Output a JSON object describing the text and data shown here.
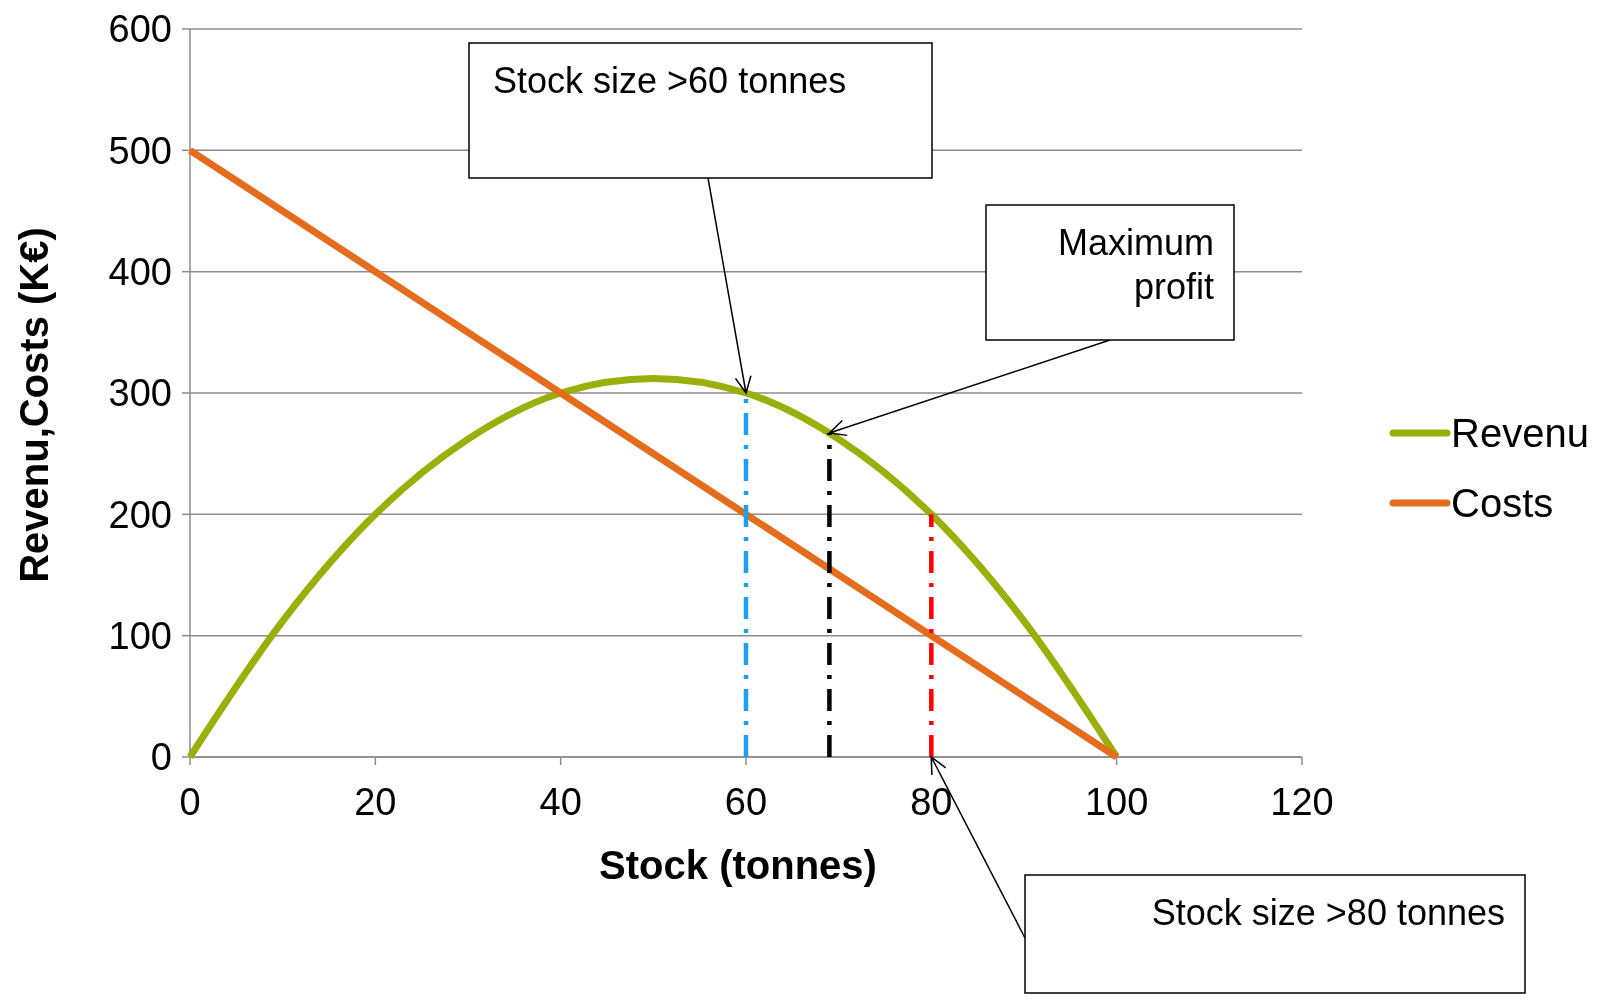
{
  "chart_data": {
    "type": "line",
    "xlabel": "Stock (tonnes)",
    "ylabel": "Revenu,Costs (K€)",
    "xlim": [
      0,
      120
    ],
    "xticks": [
      0,
      20,
      40,
      60,
      80,
      100,
      120
    ],
    "ylim": [
      0,
      600
    ],
    "yticks": [
      0,
      100,
      200,
      300,
      400,
      500,
      600
    ],
    "grid": "y",
    "legend": "right",
    "line_style": "solid",
    "marker": "none",
    "series": [
      {
        "name": "Revenu",
        "color": "#9aaf0a",
        "x": [
          0,
          10,
          20,
          30,
          40,
          50,
          60,
          70,
          80,
          90,
          100
        ],
        "values": [
          0,
          112,
          200,
          262,
          300,
          312,
          300,
          262,
          200,
          112,
          0
        ]
      },
      {
        "name": "Costs",
        "color": "#e46c1c",
        "x": [
          0,
          100
        ],
        "values": [
          500,
          0
        ]
      },
      {
        "color": "#1ea0f0",
        "x": [
          60,
          60
        ],
        "values": [
          0,
          300
        ],
        "line_style": "dashed"
      },
      {
        "color": "#000000",
        "x": [
          69,
          69
        ],
        "values": [
          0,
          267
        ],
        "line_style": "dashed"
      },
      {
        "color": "#ff0000",
        "x": [
          80,
          80
        ],
        "values": [
          0,
          200
        ],
        "line_style": "dashed"
      }
    ],
    "annotations": [
      "Stock size >60 tonnes",
      {
        "text": "Maximum profit",
        "x": 69,
        "y": 267
      },
      "Stock size >80 tonnes"
    ]
  }
}
